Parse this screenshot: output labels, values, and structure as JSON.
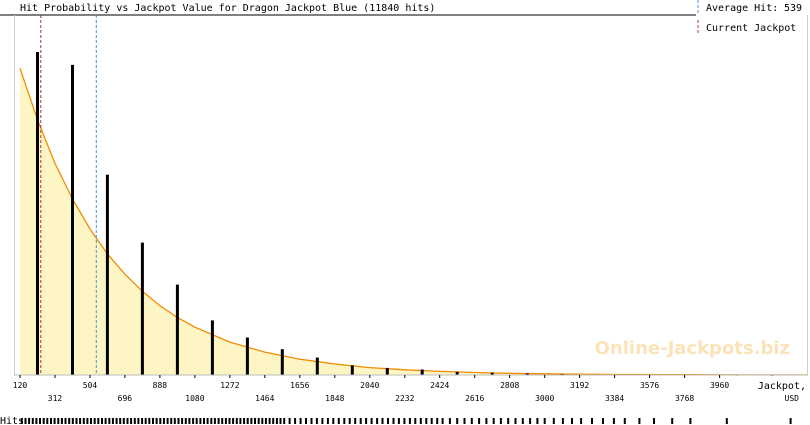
{
  "chart_data": {
    "type": "bar",
    "title": "Hit Probability vs Jackpot Value for Dragon Jackpot Blue (11840 hits)",
    "xlabel": "Jackpot,",
    "xunit": "USD",
    "xlim": [
      120,
      4440
    ],
    "ylim": [
      0,
      1
    ],
    "grid": false,
    "legend_position": "top-right",
    "legend": {
      "average": {
        "label": "Average Hit:",
        "value": "539",
        "x": 539,
        "color": "#4a8fd6"
      },
      "current": {
        "label": "Current Jackpot",
        "x": 234,
        "color": "#b03030"
      }
    },
    "x_ticks_top": [
      "120",
      "504",
      "888",
      "1272",
      "1656",
      "2040",
      "2424",
      "2808",
      "3192",
      "3576",
      "3960"
    ],
    "x_ticks_bottom": [
      "312",
      "696",
      "1080",
      "1464",
      "1848",
      "2232",
      "2616",
      "3000",
      "3384",
      "3768"
    ],
    "bars": {
      "x": [
        216,
        408,
        600,
        792,
        984,
        1176,
        1368,
        1560,
        1752,
        1944,
        2136,
        2328,
        2520,
        2712,
        2904,
        3096,
        3288,
        3480,
        3672,
        3864,
        4056,
        4248
      ],
      "values": [
        1.0,
        0.96,
        0.62,
        0.41,
        0.28,
        0.169,
        0.116,
        0.08,
        0.054,
        0.03,
        0.022,
        0.017,
        0.01,
        0.007,
        0.005,
        0.003,
        0.002,
        0.0016,
        0.001,
        0.0008,
        0.0005,
        0.0003
      ]
    },
    "curve": {
      "x": [
        120,
        216,
        312,
        408,
        504,
        600,
        696,
        792,
        888,
        984,
        1080,
        1272,
        1464,
        1656,
        1848,
        2040,
        2232,
        2424,
        2616,
        2808,
        3000,
        3384,
        3768,
        4152,
        4440
      ],
      "values": [
        0.95,
        0.79,
        0.655,
        0.545,
        0.452,
        0.375,
        0.312,
        0.259,
        0.215,
        0.178,
        0.148,
        0.102,
        0.071,
        0.049,
        0.034,
        0.023,
        0.016,
        0.011,
        0.0076,
        0.0052,
        0.0036,
        0.0017,
        0.0008,
        0.0004,
        0.0002
      ],
      "color": "#f08c00",
      "fill": "#fdf5c4"
    },
    "watermark": "Online-Jackpots.biz",
    "hits_label": "Hits",
    "hits_rug": [
      130,
      150,
      170,
      190,
      210,
      230,
      250,
      270,
      290,
      310,
      330,
      350,
      370,
      390,
      410,
      430,
      450,
      470,
      490,
      510,
      530,
      550,
      570,
      590,
      610,
      630,
      650,
      670,
      690,
      710,
      730,
      750,
      770,
      790,
      810,
      830,
      850,
      870,
      890,
      910,
      930,
      950,
      970,
      990,
      1010,
      1030,
      1050,
      1070,
      1090,
      1110,
      1130,
      1150,
      1170,
      1190,
      1210,
      1230,
      1250,
      1270,
      1290,
      1310,
      1330,
      1350,
      1370,
      1390,
      1410,
      1430,
      1450,
      1470,
      1490,
      1510,
      1530,
      1550,
      1570,
      1600,
      1630,
      1660,
      1690,
      1720,
      1750,
      1780,
      1810,
      1840,
      1870,
      1900,
      1930,
      1960,
      1990,
      2020,
      2050,
      2080,
      2110,
      2140,
      2170,
      2200,
      2230,
      2260,
      2290,
      2320,
      2350,
      2380,
      2410,
      2440,
      2480,
      2520,
      2560,
      2600,
      2640,
      2680,
      2720,
      2760,
      2800,
      2840,
      2880,
      2920,
      2960,
      3000,
      3050,
      3100,
      3150,
      3200,
      3260,
      3320,
      3380,
      3440,
      3520,
      3600,
      3700,
      3800,
      4000,
      4350
    ]
  }
}
